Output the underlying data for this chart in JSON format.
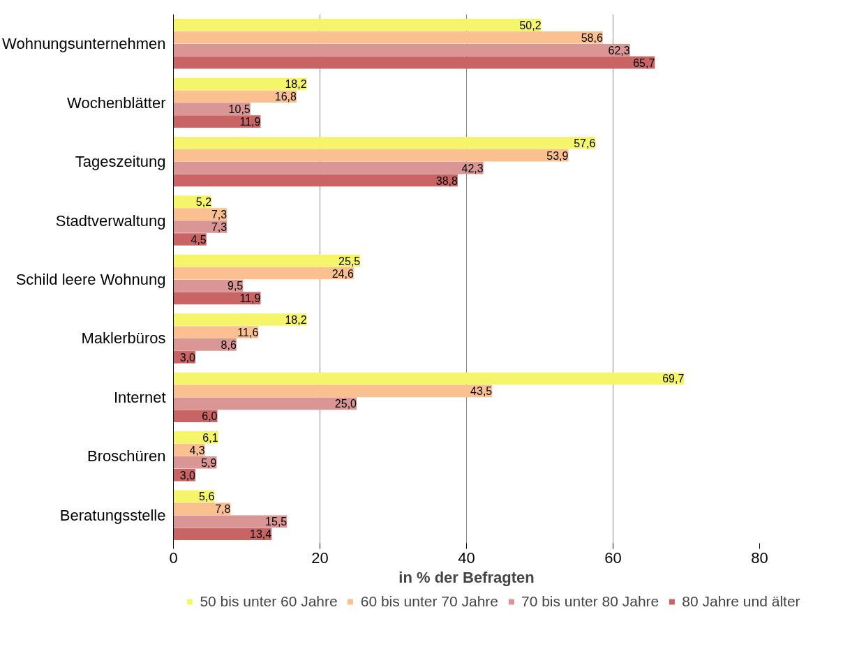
{
  "chart_data": {
    "type": "bar",
    "orientation": "horizontal",
    "xlabel": "in % der Befragten",
    "categories": [
      "Wohnungsunternehmen",
      "Wochenblätter",
      "Tageszeitung",
      "Stadtverwaltung",
      "Schild leere Wohnung",
      "Maklerbüros",
      "Internet",
      "Broschüren",
      "Beratungsstelle"
    ],
    "series": [
      {
        "name": "50 bis unter 60 Jahre",
        "color": "#f5f56b",
        "values": [
          50.2,
          18.2,
          57.6,
          5.2,
          25.5,
          18.2,
          69.7,
          6.1,
          5.6
        ],
        "value_labels": [
          "50,2",
          "18,2",
          "57,6",
          "5,2",
          "25,5",
          "18,2",
          "69,7",
          "6,1",
          "5,6"
        ]
      },
      {
        "name": "60 bis unter 70 Jahre",
        "color": "#fac08f",
        "values": [
          58.6,
          16.8,
          53.9,
          7.3,
          24.6,
          11.6,
          43.5,
          4.3,
          7.8
        ],
        "value_labels": [
          "58,6",
          "16,8",
          "53,9",
          "7,3",
          "24,6",
          "11,6",
          "43,5",
          "4,3",
          "7,8"
        ]
      },
      {
        "name": "70 bis unter 80 Jahre",
        "color": "#d99694",
        "values": [
          62.3,
          10.5,
          42.3,
          7.3,
          9.5,
          8.6,
          25.0,
          5.9,
          15.5
        ],
        "value_labels": [
          "62,3",
          "10,5",
          "42,3",
          "7,3",
          "9,5",
          "8,6",
          "25,0",
          "5,9",
          "15,5"
        ]
      },
      {
        "name": "80 Jahre und älter",
        "color": "#c86464",
        "values": [
          65.7,
          11.9,
          38.8,
          4.5,
          11.9,
          3.0,
          6.0,
          3.0,
          13.4
        ],
        "value_labels": [
          "65,7",
          "11,9",
          "38,8",
          "4,5",
          "11,9",
          "3,0",
          "6,0",
          "3,0",
          "13,4"
        ]
      }
    ],
    "xlim": [
      0,
      80
    ],
    "xticks": [
      0,
      20,
      40,
      60,
      80
    ],
    "grid": "x",
    "legend": "bottom"
  }
}
